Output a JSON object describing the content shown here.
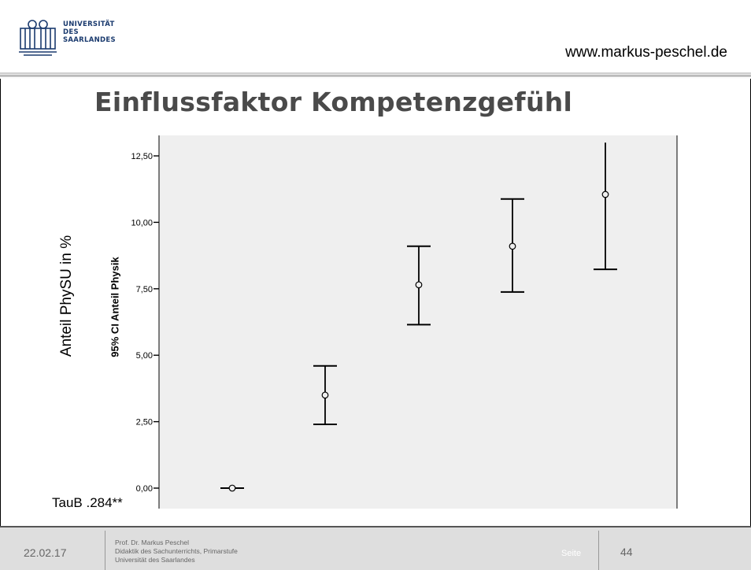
{
  "header": {
    "logo_lines": [
      "UNIVERSITÄT",
      "DES",
      "SAARLANDES"
    ],
    "website": "www.markus-peschel.de"
  },
  "slide": {
    "title": "Einflussfaktor Kompetenzgefühl",
    "ylabel_outer": "Anteil PhySU in %",
    "annotation": "TauB .284**"
  },
  "chart_data": {
    "type": "errorbar",
    "ylabel": "95% CI Anteil Physik",
    "ylim": [
      0,
      13.0
    ],
    "y_ticks": [
      "0,00",
      "2,50",
      "5,00",
      "7,50",
      "10,00",
      "12,50"
    ],
    "y_tick_values": [
      0,
      2.5,
      5.0,
      7.5,
      10.0,
      12.5
    ],
    "points": [
      {
        "mean": 0.0,
        "lower": 0.0,
        "upper": 0.0
      },
      {
        "mean": 3.5,
        "lower": 2.4,
        "upper": 4.6
      },
      {
        "mean": 7.65,
        "lower": 6.15,
        "upper": 9.1
      },
      {
        "mean": 9.1,
        "lower": 7.38,
        "upper": 10.88
      },
      {
        "mean": 11.05,
        "lower": 8.23,
        "upper": 13.0
      }
    ],
    "colors": {
      "plot_bg": "#efefef",
      "marks": "#000000"
    }
  },
  "footer": {
    "date": "22.02.17",
    "prof_lines": [
      "Prof. Dr. Markus Peschel",
      "Didaktik des Sachunterrichts, Primarstufe",
      "Universität des Saarlandes"
    ],
    "seite_label": "Seite",
    "page_number": "44"
  }
}
